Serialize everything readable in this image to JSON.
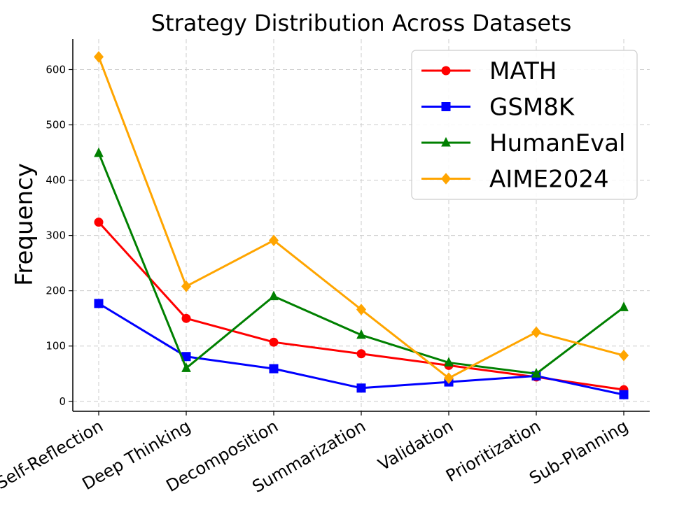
{
  "chart_data": {
    "type": "line",
    "title": "Strategy Distribution Across Datasets",
    "xlabel": "",
    "ylabel": "Frequency",
    "categories": [
      "Self-Reflection",
      "Deep Thinking",
      "Decomposition",
      "Summarization",
      "Validation",
      "Prioritization",
      "Sub-Planning"
    ],
    "ylim": [
      -18,
      655
    ],
    "yticks": [
      0,
      100,
      200,
      300,
      400,
      500,
      600
    ],
    "grid": true,
    "legend_position": "top-right",
    "series": [
      {
        "name": "MATH",
        "color": "#ff0000",
        "marker": "circle",
        "values": [
          324,
          150,
          107,
          86,
          65,
          44,
          21
        ]
      },
      {
        "name": "GSM8K",
        "color": "#0000ff",
        "marker": "square",
        "values": [
          177,
          81,
          59,
          24,
          35,
          46,
          12
        ]
      },
      {
        "name": "HumanEval",
        "color": "#008000",
        "marker": "triangle",
        "values": [
          449,
          60,
          190,
          120,
          70,
          50,
          170
        ]
      },
      {
        "name": "AIME2024",
        "color": "#ffa500",
        "marker": "diamond",
        "values": [
          623,
          208,
          291,
          166,
          42,
          125,
          83
        ]
      }
    ]
  }
}
